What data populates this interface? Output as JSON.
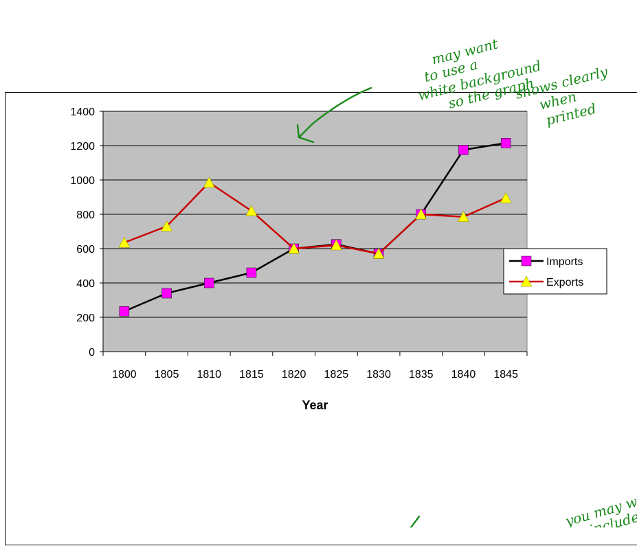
{
  "chart_data": {
    "type": "line",
    "categories": [
      "1800",
      "1805",
      "1810",
      "1815",
      "1820",
      "1825",
      "1830",
      "1835",
      "1840",
      "1845"
    ],
    "series": [
      {
        "name": "Imports",
        "values": [
          235,
          340,
          400,
          460,
          600,
          625,
          570,
          800,
          1175,
          1215
        ],
        "color": "#000000",
        "marker": "square",
        "marker_color": "#ff00ff"
      },
      {
        "name": "Exports",
        "values": [
          635,
          730,
          985,
          820,
          600,
          620,
          570,
          800,
          785,
          895
        ],
        "color": "#cc0000",
        "marker": "triangle",
        "marker_color": "#ffff00"
      }
    ],
    "xlabel": "Year",
    "ylabel": "",
    "ylim": [
      0,
      1400
    ],
    "yticks": [
      0,
      200,
      400,
      600,
      800,
      1000,
      1200,
      1400
    ],
    "grid": "horizontal",
    "plot_background": "#c0c0c0",
    "legend": "right"
  },
  "annotations": {
    "top_note": [
      "may want",
      "to use a",
      "white background",
      "so the graph",
      "shows clearly",
      "when",
      "printed"
    ],
    "bottom_note": [
      "you may w",
      "include"
    ]
  }
}
